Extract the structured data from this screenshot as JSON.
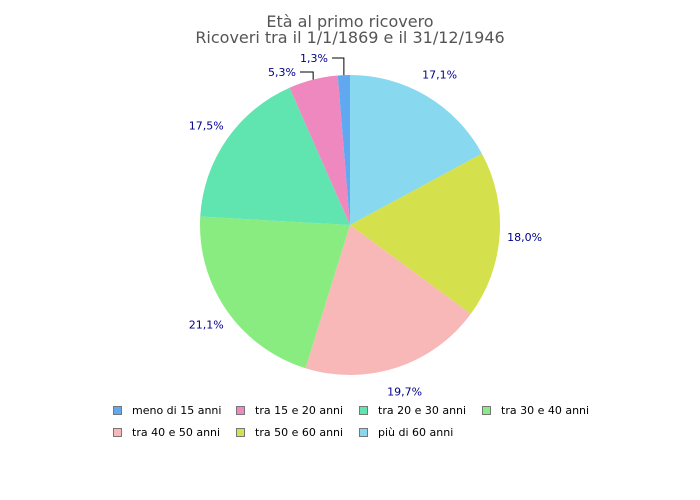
{
  "chart_data": {
    "type": "pie",
    "title": "Età al primo ricovero",
    "subtitle": "Ricoveri tra il 1/1/1869 e il 31/12/1946",
    "legend_position": "bottom",
    "slices": [
      {
        "label": "meno di 15 anni",
        "value": 1.3,
        "display": "1,3%",
        "color": "#60A8F0"
      },
      {
        "label": "tra 15 e 20 anni",
        "value": 5.3,
        "display": "5,3%",
        "color": "#F088C0"
      },
      {
        "label": "tra 20 e 30 anni",
        "value": 17.5,
        "display": "17,5%",
        "color": "#60E4B0"
      },
      {
        "label": "tra 30 e 40 anni",
        "value": 21.1,
        "display": "21,1%",
        "color": "#88EC80"
      },
      {
        "label": "tra 40 e 50 anni",
        "value": 19.7,
        "display": "19,7%",
        "color": "#F8B8B8"
      },
      {
        "label": "tra 50 e 60 anni",
        "value": 18.0,
        "display": "18,0%",
        "color": "#D4E04C"
      },
      {
        "label": "più di 60 anni",
        "value": 17.1,
        "display": "17,1%",
        "color": "#88D8F0"
      }
    ]
  }
}
